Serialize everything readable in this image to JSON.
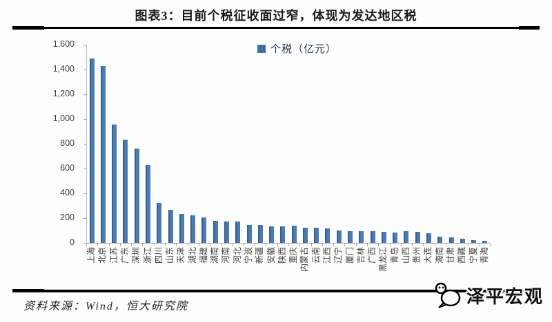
{
  "header": {
    "title": "图表3：目前个税征收面过窄，体现为发达地区税"
  },
  "legend": {
    "label": "个税（亿元）"
  },
  "footer": {
    "source": "资料来源：Wind，恒大研究院",
    "watermark": "泽平宏观"
  },
  "colors": {
    "bar_fill": "#4a7bb2",
    "bar_edge": "#38608e",
    "axis": "#a6a6a6",
    "tick_text": "#3f3f3f",
    "rule": "#000000"
  },
  "chart_data": {
    "type": "bar",
    "title": "图表3：目前个税征收面过窄，体现为发达地区税",
    "legend": [
      "个税（亿元）"
    ],
    "legend_position": "top-center",
    "xlabel": "",
    "ylabel": "个税（亿元）",
    "ylim": [
      0,
      1600
    ],
    "ytick_interval": 200,
    "ytick_labels": [
      "1,600",
      "1,400",
      "1,200",
      "1,000",
      "800",
      "600",
      "400",
      "200",
      "0"
    ],
    "grid": false,
    "categories": [
      "上海",
      "北京",
      "江苏",
      "广东",
      "深圳",
      "浙江",
      "四川",
      "山东",
      "天津",
      "湖北",
      "福建",
      "湖南",
      "河南",
      "河北",
      "宁波",
      "新疆",
      "安徽",
      "陕西",
      "重庆",
      "内蒙古",
      "云南",
      "江西",
      "辽宁",
      "厦门",
      "吉林",
      "广西",
      "黑龙江",
      "青岛",
      "山西",
      "贵州",
      "大连",
      "海南",
      "甘肃",
      "西藏",
      "宁夏",
      "青海"
    ],
    "values": [
      1490,
      1430,
      955,
      835,
      760,
      630,
      320,
      264,
      236,
      221,
      205,
      176,
      171,
      175,
      146,
      143,
      134,
      133,
      137,
      121,
      122,
      117,
      101,
      97,
      94,
      96,
      88,
      86,
      92,
      88,
      76,
      49,
      45,
      31,
      21,
      15
    ]
  }
}
